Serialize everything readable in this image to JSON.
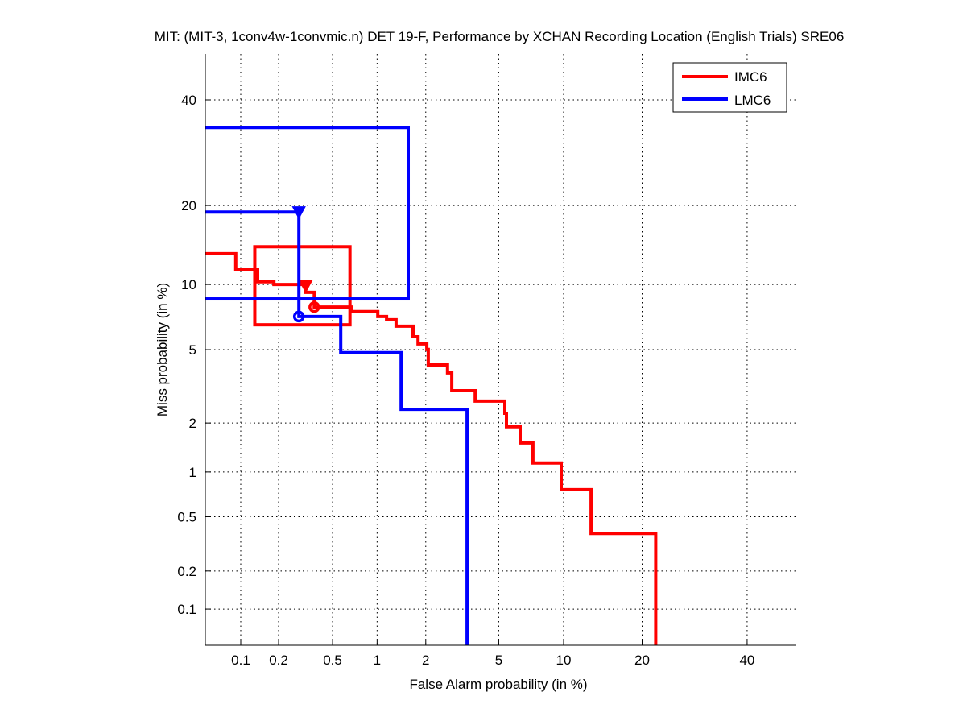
{
  "chart_data": {
    "type": "line",
    "title": "MIT: (MIT-3, 1conv4w-1convmic.n) DET 19-F,  Performance by XCHAN Recording Location (English Trials) SRE06",
    "xlabel": "False Alarm probability (in %)",
    "ylabel": "Miss probability (in %)",
    "scale": "normal-deviate",
    "xlim": [
      0.05,
      51
    ],
    "ylim": [
      0.05,
      50
    ],
    "grid": true,
    "legend_position": "top-right",
    "xticks": [
      0.1,
      0.2,
      0.5,
      1,
      2,
      5,
      10,
      20,
      40
    ],
    "xtick_labels": [
      "0.1",
      "0.2",
      "0.5",
      "1",
      "2",
      "5",
      "10",
      "20",
      "40"
    ],
    "yticks": [
      0.1,
      0.2,
      0.5,
      1,
      2,
      5,
      10,
      20,
      40
    ],
    "ytick_labels": [
      "0.1",
      "0.2",
      "0.5",
      "1",
      "2",
      "5",
      "10",
      "20",
      "40"
    ],
    "series": [
      {
        "name": "IMC6",
        "color": "#ff0000",
        "points": [
          [
            0.05,
            13.35
          ],
          [
            0.091,
            13.35
          ],
          [
            0.091,
            11.5
          ],
          [
            0.137,
            11.5
          ],
          [
            0.137,
            10.26
          ],
          [
            0.184,
            10.26
          ],
          [
            0.184,
            10.0
          ],
          [
            0.32,
            10.0
          ],
          [
            0.32,
            9.25
          ],
          [
            0.37,
            9.25
          ],
          [
            0.37,
            7.97
          ],
          [
            0.68,
            7.97
          ],
          [
            0.68,
            7.6
          ],
          [
            1.01,
            7.6
          ],
          [
            1.01,
            7.21
          ],
          [
            1.15,
            7.21
          ],
          [
            1.15,
            6.97
          ],
          [
            1.32,
            6.97
          ],
          [
            1.32,
            6.5
          ],
          [
            1.68,
            6.5
          ],
          [
            1.68,
            5.79
          ],
          [
            1.8,
            5.79
          ],
          [
            1.8,
            5.34
          ],
          [
            2.03,
            5.34
          ],
          [
            2.03,
            5.01
          ],
          [
            2.07,
            5.01
          ],
          [
            2.07,
            4.18
          ],
          [
            2.67,
            4.18
          ],
          [
            2.67,
            3.8
          ],
          [
            2.82,
            3.8
          ],
          [
            2.82,
            3.05
          ],
          [
            3.78,
            3.05
          ],
          [
            3.78,
            2.67
          ],
          [
            5.36,
            2.67
          ],
          [
            5.36,
            2.28
          ],
          [
            5.46,
            2.28
          ],
          [
            5.46,
            1.9
          ],
          [
            6.36,
            1.9
          ],
          [
            6.36,
            1.52
          ],
          [
            7.31,
            1.52
          ],
          [
            7.31,
            1.14
          ],
          [
            9.77,
            1.14
          ],
          [
            9.77,
            0.765
          ],
          [
            12.97,
            0.765
          ],
          [
            12.97,
            0.38
          ],
          [
            22.2,
            0.38
          ],
          [
            22.2,
            0.04
          ]
        ],
        "box": {
          "fa": [
            0.13,
            0.66
          ],
          "miss": [
            6.6,
            14.2
          ]
        },
        "triangle_marker": [
          0.32,
          9.85
        ],
        "circle_marker": [
          0.37,
          7.97
        ]
      },
      {
        "name": "LMC6",
        "color": "#0000ff",
        "points": [
          [
            0.05,
            19.0
          ],
          [
            0.285,
            19.0
          ],
          [
            0.285,
            7.21
          ],
          [
            0.57,
            7.21
          ],
          [
            0.57,
            4.83
          ],
          [
            1.42,
            4.83
          ],
          [
            1.42,
            2.4
          ],
          [
            3.42,
            2.4
          ],
          [
            3.42,
            0.04
          ]
        ],
        "box": {
          "fa": [
            0.04,
            1.57
          ],
          "miss": [
            8.66,
            34.2
          ]
        },
        "triangle_marker": [
          0.285,
          19.0
        ],
        "circle_marker": [
          0.285,
          7.21
        ]
      }
    ]
  }
}
